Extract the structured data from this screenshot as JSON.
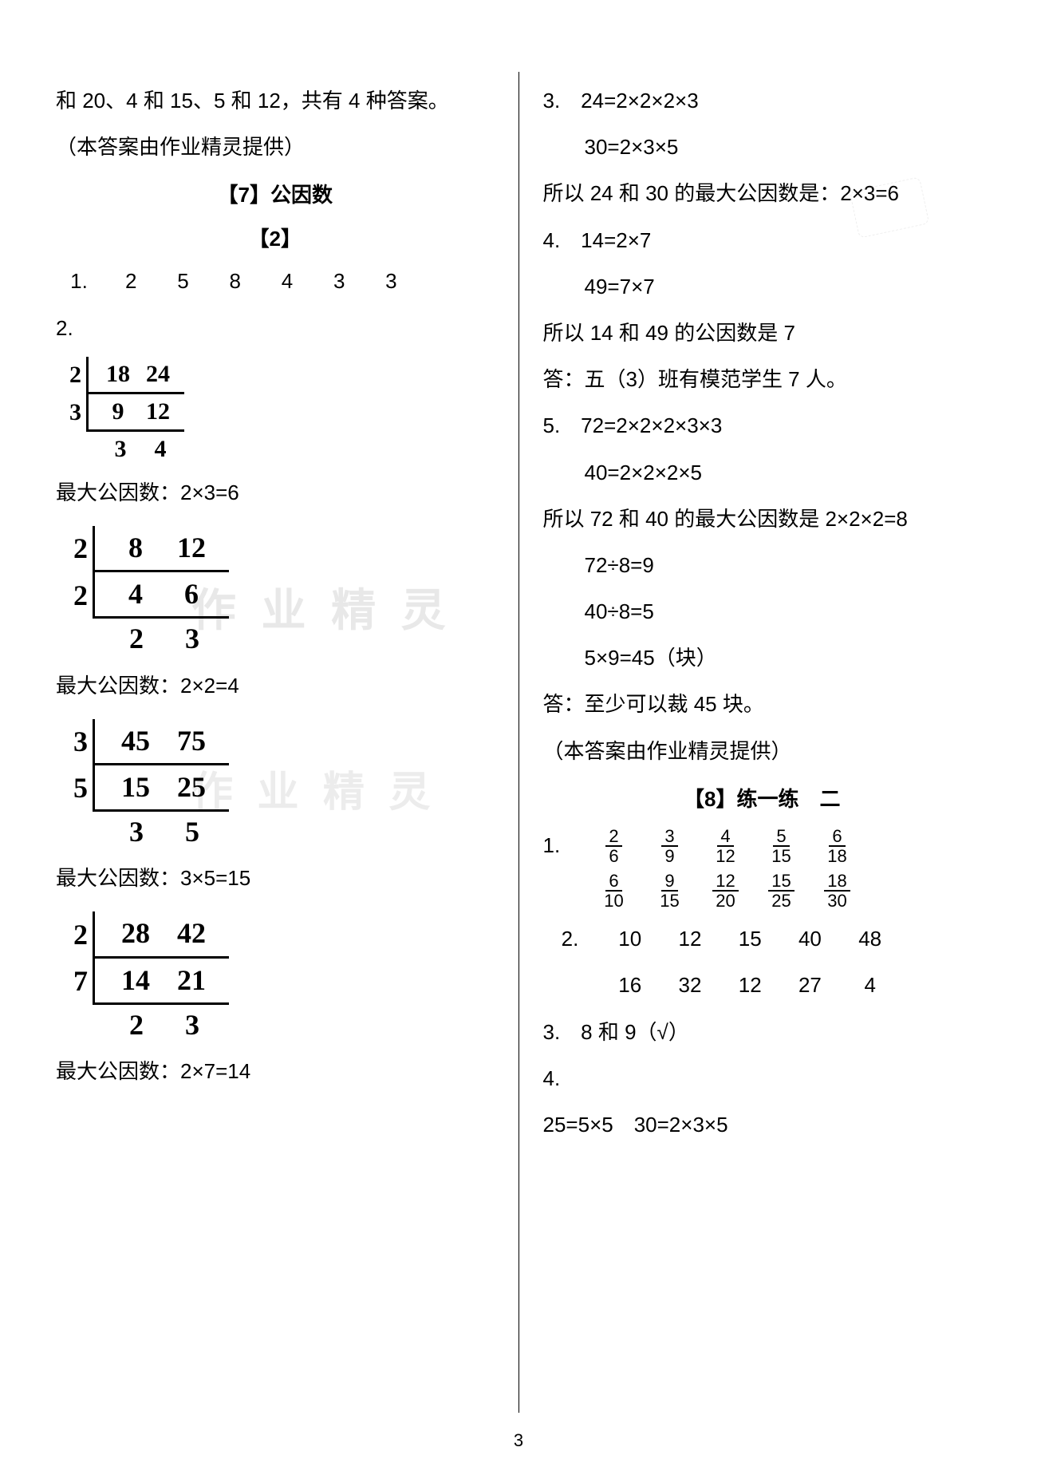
{
  "page_number": "3",
  "watermark": "作 业 精 灵",
  "left": {
    "intro": "和 20、4 和 15、5 和 12，共有 4 种答案。",
    "credit": "（本答案由作业精灵提供）",
    "section7_title": "【7】公因数",
    "sub2_title": "【2】",
    "q1_label": "1.",
    "q1_vals": [
      "2",
      "5",
      "8",
      "4",
      "3",
      "3"
    ],
    "q2_label": "2.",
    "ladder1": {
      "rows": [
        {
          "f": "2",
          "a": "18",
          "b": "24"
        },
        {
          "f": "3",
          "a": "9",
          "b": "12"
        }
      ],
      "res": {
        "a": "3",
        "b": "4"
      },
      "gcf": "最大公因数：2×3=6"
    },
    "ladder2": {
      "rows": [
        {
          "f": "2",
          "a": "8",
          "b": "12"
        },
        {
          "f": "2",
          "a": "4",
          "b": "6"
        }
      ],
      "res": {
        "a": "2",
        "b": "3"
      },
      "gcf": "最大公因数：2×2=4"
    },
    "ladder3": {
      "rows": [
        {
          "f": "3",
          "a": "45",
          "b": "75"
        },
        {
          "f": "5",
          "a": "15",
          "b": "25"
        }
      ],
      "res": {
        "a": "3",
        "b": "5"
      },
      "gcf": "最大公因数：3×5=15"
    },
    "ladder4": {
      "rows": [
        {
          "f": "2",
          "a": "28",
          "b": "42"
        },
        {
          "f": "7",
          "a": "14",
          "b": "21"
        }
      ],
      "res": {
        "a": "2",
        "b": "3"
      },
      "gcf": "最大公因数：2×7=14"
    }
  },
  "right": {
    "q3_lines": [
      "3.　24=2×2×2×3",
      "　　30=2×3×5",
      "所以 24 和 30 的最大公因数是：2×3=6"
    ],
    "q4_lines": [
      "4.　14=2×7",
      "　　49=7×7",
      "所以 14 和 49 的公因数是 7",
      "答：五（3）班有模范学生 7 人。"
    ],
    "q5_lines": [
      "5.　72=2×2×2×3×3",
      "　　40=2×2×2×5",
      "所以 72 和 40 的最大公因数是 2×2×2=8",
      "　　72÷8=9",
      "　　40÷8=5",
      "　　5×9=45（块）",
      "答：至少可以裁 45 块。"
    ],
    "credit": "（本答案由作业精灵提供）",
    "section8_title": "【8】练一练　二",
    "q1_label": "1.",
    "q1_fracs_row1": [
      {
        "n": "2",
        "d": "6"
      },
      {
        "n": "3",
        "d": "9"
      },
      {
        "n": "4",
        "d": "12"
      },
      {
        "n": "5",
        "d": "15"
      },
      {
        "n": "6",
        "d": "18"
      }
    ],
    "q1_fracs_row2": [
      {
        "n": "6",
        "d": "10"
      },
      {
        "n": "9",
        "d": "15"
      },
      {
        "n": "12",
        "d": "20"
      },
      {
        "n": "15",
        "d": "25"
      },
      {
        "n": "18",
        "d": "30"
      }
    ],
    "q2_label": "2.",
    "q2_r1": [
      "10",
      "12",
      "15",
      "40",
      "48"
    ],
    "q2_r2": [
      "16",
      "32",
      "12",
      "27",
      "4"
    ],
    "q3_text": "3.　8 和 9（√）",
    "q4_text": "4.",
    "last_line": "25=5×5　30=2×3×5"
  },
  "colors": {
    "text": "#000000",
    "bg": "#ffffff",
    "watermark": "#e8e8e8"
  },
  "typography": {
    "base_fontsize": 26,
    "ladder_fontsize_small": 30,
    "ladder_fontsize_big": 36,
    "frac_fontsize": 22
  }
}
